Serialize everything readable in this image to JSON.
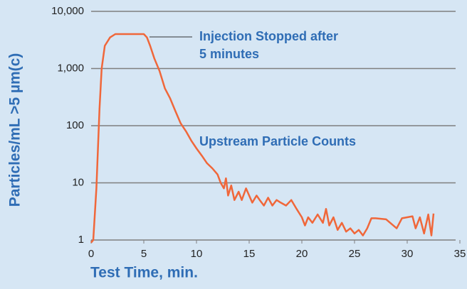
{
  "chart_data": {
    "type": "line",
    "annotations": [
      [
        "Injection Stopped after",
        "5 minutes"
      ],
      "Upstream Particle Counts"
    ],
    "xlabel": "Test Time, min.",
    "ylabel": "Particles/mL >5 µm(c)",
    "log_y": true,
    "grid": true,
    "background": "#d6e6f4",
    "text_color": "#2f6db5",
    "grid_color": "#7f7f7f",
    "xlim": [
      0,
      35
    ],
    "xticks": [
      0,
      5,
      10,
      15,
      20,
      25,
      30,
      35
    ],
    "ylim": [
      1,
      10000
    ],
    "yticks": [
      {
        "value": 10000,
        "label": "10,000"
      },
      {
        "value": 1000,
        "label": "1,000"
      },
      100,
      10,
      1
    ],
    "series": [
      {
        "name": "Upstream Particle Counts",
        "color": "#f0673a",
        "x": [
          0,
          0.2,
          0.5,
          0.8,
          1,
          1.3,
          1.8,
          2.3,
          3,
          4,
          5,
          5.3,
          5.6,
          6,
          6.5,
          7,
          7.5,
          8,
          8.5,
          9,
          9.5,
          10,
          10.5,
          11,
          11.5,
          12,
          12.3,
          12.6,
          12.8,
          13,
          13.3,
          13.6,
          14,
          14.3,
          14.7,
          15,
          15.3,
          15.7,
          16,
          16.4,
          16.8,
          17.2,
          17.6,
          18,
          18.5,
          19,
          19.5,
          20,
          20.3,
          20.6,
          21,
          21.5,
          22,
          22.3,
          22.6,
          23,
          23.4,
          23.8,
          24.2,
          24.6,
          25,
          25.4,
          25.8,
          26.2,
          26.6,
          27,
          28,
          29,
          29.5,
          30.5,
          30.8,
          31.2,
          31.6,
          32,
          32.3,
          32.5
        ],
        "values": [
          0.9,
          1,
          8,
          200,
          1000,
          2500,
          3500,
          4000,
          4000,
          4000,
          4000,
          3500,
          2500,
          1500,
          900,
          450,
          300,
          180,
          110,
          80,
          55,
          40,
          30,
          22,
          18,
          14,
          10,
          8,
          12,
          6,
          9,
          5,
          7,
          5,
          8,
          6,
          4.5,
          6,
          5,
          4,
          5.5,
          4,
          5,
          4.5,
          4,
          5,
          3.5,
          2.5,
          1.8,
          2.5,
          2,
          2.8,
          2,
          3.5,
          1.8,
          2.5,
          1.5,
          2,
          1.4,
          1.6,
          1.3,
          1.5,
          1.2,
          1.6,
          2.4,
          2.4,
          2.3,
          1.6,
          2.4,
          2.6,
          1.6,
          2.5,
          1.3,
          2.8,
          1.2,
          2.9
        ]
      }
    ]
  }
}
